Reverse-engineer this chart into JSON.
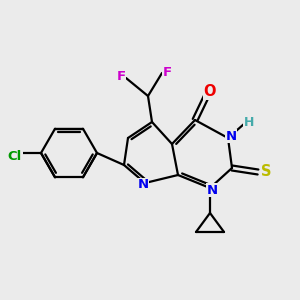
{
  "bg_color": "#ebebeb",
  "bond_color": "#000000",
  "atom_colors": {
    "N": "#0000ee",
    "O": "#ee0000",
    "S": "#bbbb00",
    "F": "#cc00cc",
    "Cl": "#009900",
    "H": "#44aaaa"
  },
  "figsize": [
    3.0,
    3.0
  ],
  "dpi": 100,
  "lw": 1.6
}
